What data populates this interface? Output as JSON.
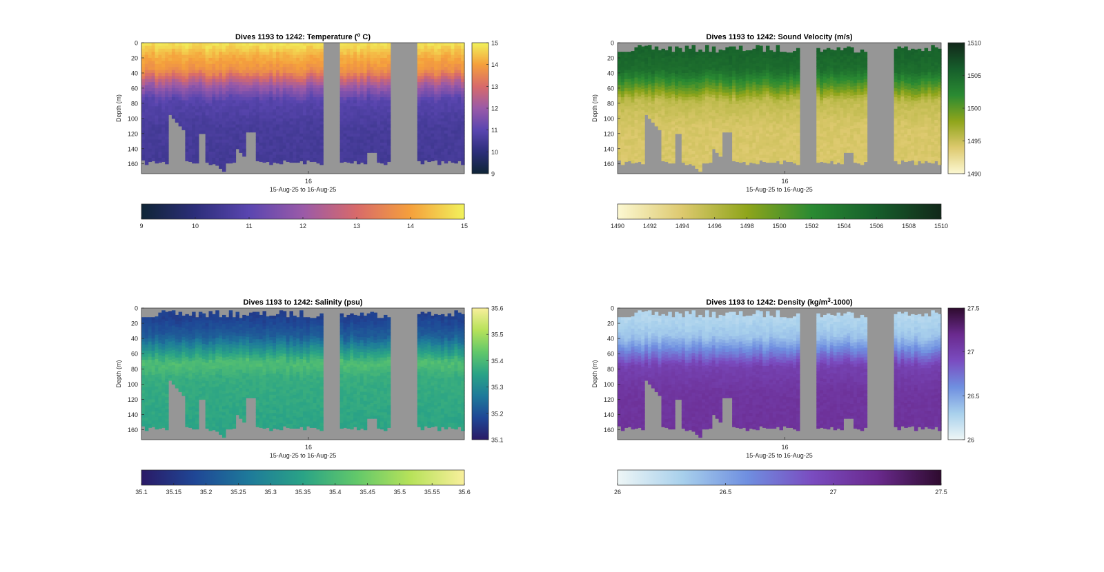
{
  "chart_data": [
    {
      "type": "heatmap",
      "variable": "temperature",
      "title": "Dives 1193 to 1242: Temperature (",
      "title_sup": "o",
      "title_end": " C)",
      "ylabel": "Depth (m)",
      "xlabel": "15-Aug-25 to 16-Aug-25",
      "x_tick_labels": [
        "16"
      ],
      "y_tick_labels": [
        "0",
        "20",
        "40",
        "60",
        "80",
        "100",
        "120",
        "140",
        "160"
      ],
      "ylim": [
        0,
        173
      ],
      "clim": [
        9,
        15
      ],
      "colorbar_ticks_vertical": [
        "9",
        "10",
        "11",
        "12",
        "13",
        "14",
        "15"
      ],
      "colorbar_ticks_horizontal": [
        "9",
        "10",
        "11",
        "12",
        "13",
        "14",
        "15"
      ],
      "colors": [
        "#0f2536",
        "#2c2e7a",
        "#5a46b0",
        "#9a5aa8",
        "#d86a6a",
        "#f5a03c",
        "#f1f25c"
      ],
      "profile_values": [
        {
          "depth": 0,
          "value": 14.8
        },
        {
          "depth": 15,
          "value": 14.2
        },
        {
          "depth": 35,
          "value": 13.7
        },
        {
          "depth": 55,
          "value": 12.0
        },
        {
          "depth": 75,
          "value": 10.9
        },
        {
          "depth": 110,
          "value": 10.6
        },
        {
          "depth": 165,
          "value": 10.5
        }
      ]
    },
    {
      "type": "heatmap",
      "variable": "sound_velocity",
      "title": "Dives 1193 to 1242: Sound Velocity (m/s)",
      "ylabel": "Depth (m)",
      "xlabel": "15-Aug-25 to 16-Aug-25",
      "x_tick_labels": [
        "16"
      ],
      "y_tick_labels": [
        "0",
        "20",
        "40",
        "60",
        "80",
        "100",
        "120",
        "140",
        "160"
      ],
      "ylim": [
        0,
        173
      ],
      "clim": [
        1490,
        1510
      ],
      "colorbar_ticks_vertical": [
        "1490",
        "1495",
        "1500",
        "1505",
        "1510"
      ],
      "colorbar_ticks_horizontal": [
        "1490",
        "1492",
        "1494",
        "1496",
        "1498",
        "1500",
        "1502",
        "1504",
        "1506",
        "1508",
        "1510"
      ],
      "colors": [
        "#fcf8d2",
        "#ddc96e",
        "#8fa51b",
        "#2a8a32",
        "#165e2b",
        "#12281a"
      ],
      "profile_values": [
        {
          "depth": 10,
          "value": 1505.5
        },
        {
          "depth": 35,
          "value": 1504.5
        },
        {
          "depth": 55,
          "value": 1500.5
        },
        {
          "depth": 75,
          "value": 1495.5
        },
        {
          "depth": 110,
          "value": 1494.3
        },
        {
          "depth": 165,
          "value": 1494.2
        }
      ]
    },
    {
      "type": "heatmap",
      "variable": "salinity",
      "title": "Dives 1193 to 1242: Salinity (psu)",
      "ylabel": "Depth (m)",
      "xlabel": "15-Aug-25 to 16-Aug-25",
      "x_tick_labels": [
        "16"
      ],
      "y_tick_labels": [
        "0",
        "20",
        "40",
        "60",
        "80",
        "100",
        "120",
        "140",
        "160"
      ],
      "ylim": [
        0,
        173
      ],
      "clim": [
        35.1,
        35.6
      ],
      "colorbar_ticks_vertical": [
        "35.1",
        "35.2",
        "35.3",
        "35.4",
        "35.5",
        "35.6"
      ],
      "colorbar_ticks_horizontal": [
        "35.1",
        "35.15",
        "35.2",
        "35.25",
        "35.3",
        "35.35",
        "35.4",
        "35.45",
        "35.5",
        "35.55",
        "35.6"
      ],
      "colors": [
        "#2a1a66",
        "#1f4796",
        "#1e7a9a",
        "#2aa386",
        "#62c86a",
        "#b7e25a",
        "#f8ef9c"
      ],
      "profile_values": [
        {
          "depth": 10,
          "value": 35.17
        },
        {
          "depth": 35,
          "value": 35.22
        },
        {
          "depth": 55,
          "value": 35.33
        },
        {
          "depth": 70,
          "value": 35.41
        },
        {
          "depth": 90,
          "value": 35.37
        },
        {
          "depth": 165,
          "value": 35.35
        }
      ]
    },
    {
      "type": "heatmap",
      "variable": "density",
      "title": "Dives 1193 to 1242: Density (kg/m",
      "title_sup": "3",
      "title_end": "-1000)",
      "ylabel": "Depth (m)",
      "xlabel": "15-Aug-25 to 16-Aug-25",
      "x_tick_labels": [
        "16"
      ],
      "y_tick_labels": [
        "0",
        "20",
        "40",
        "60",
        "80",
        "100",
        "120",
        "140",
        "160"
      ],
      "ylim": [
        0,
        173
      ],
      "clim": [
        26,
        27.5
      ],
      "colorbar_ticks_vertical": [
        "26",
        "26.5",
        "27",
        "27.5"
      ],
      "colorbar_ticks_horizontal": [
        "26",
        "26.5",
        "27",
        "27.5"
      ],
      "colors": [
        "#eef6f6",
        "#a8d0ec",
        "#6f8fe0",
        "#7a4cc0",
        "#6a2a8e",
        "#2e0b2e"
      ],
      "profile_values": [
        {
          "depth": 10,
          "value": 26.25
        },
        {
          "depth": 35,
          "value": 26.35
        },
        {
          "depth": 55,
          "value": 26.65
        },
        {
          "depth": 75,
          "value": 27.0
        },
        {
          "depth": 110,
          "value": 27.1
        },
        {
          "depth": 165,
          "value": 27.12
        }
      ]
    }
  ]
}
